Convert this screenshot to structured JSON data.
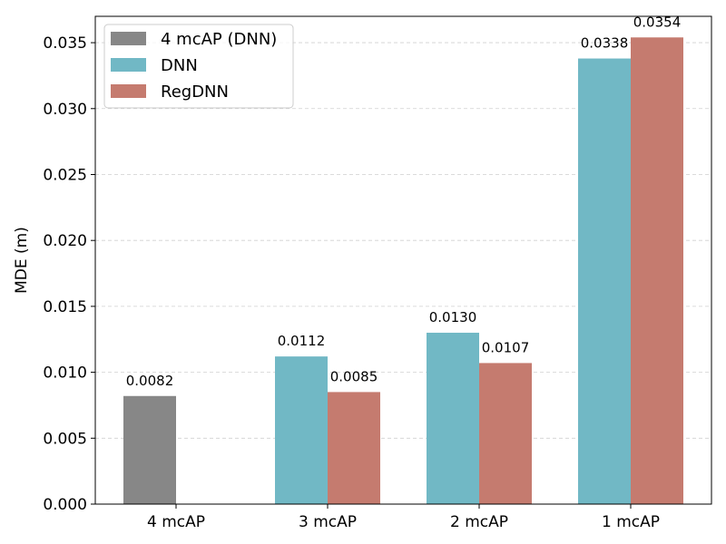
{
  "chart_data": {
    "type": "bar",
    "title": "",
    "xlabel": "",
    "ylabel": "MDE (m)",
    "ylim": [
      0,
      0.037
    ],
    "yticks": [
      "0.000",
      "0.005",
      "0.010",
      "0.015",
      "0.020",
      "0.025",
      "0.030",
      "0.035"
    ],
    "grid": true,
    "legend_position": "top-left",
    "categories": [
      "4 mcAP",
      "3 mcAP",
      "2 mcAP",
      "1 mcAP"
    ],
    "series": [
      {
        "name": "4 mcAP (DNN)",
        "color": "#878787",
        "values": [
          0.0082,
          null,
          null,
          null
        ],
        "labels": [
          "0.0082",
          null,
          null,
          null
        ]
      },
      {
        "name": "DNN",
        "color": "#71b8c5",
        "values": [
          null,
          0.0112,
          0.013,
          0.0338
        ],
        "labels": [
          null,
          "0.0112",
          "0.0130",
          "0.0338"
        ]
      },
      {
        "name": "RegDNN",
        "color": "#c57b6f",
        "values": [
          null,
          0.0085,
          0.0107,
          0.0354
        ],
        "labels": [
          null,
          "0.0085",
          "0.0107",
          "0.0354"
        ]
      }
    ]
  }
}
